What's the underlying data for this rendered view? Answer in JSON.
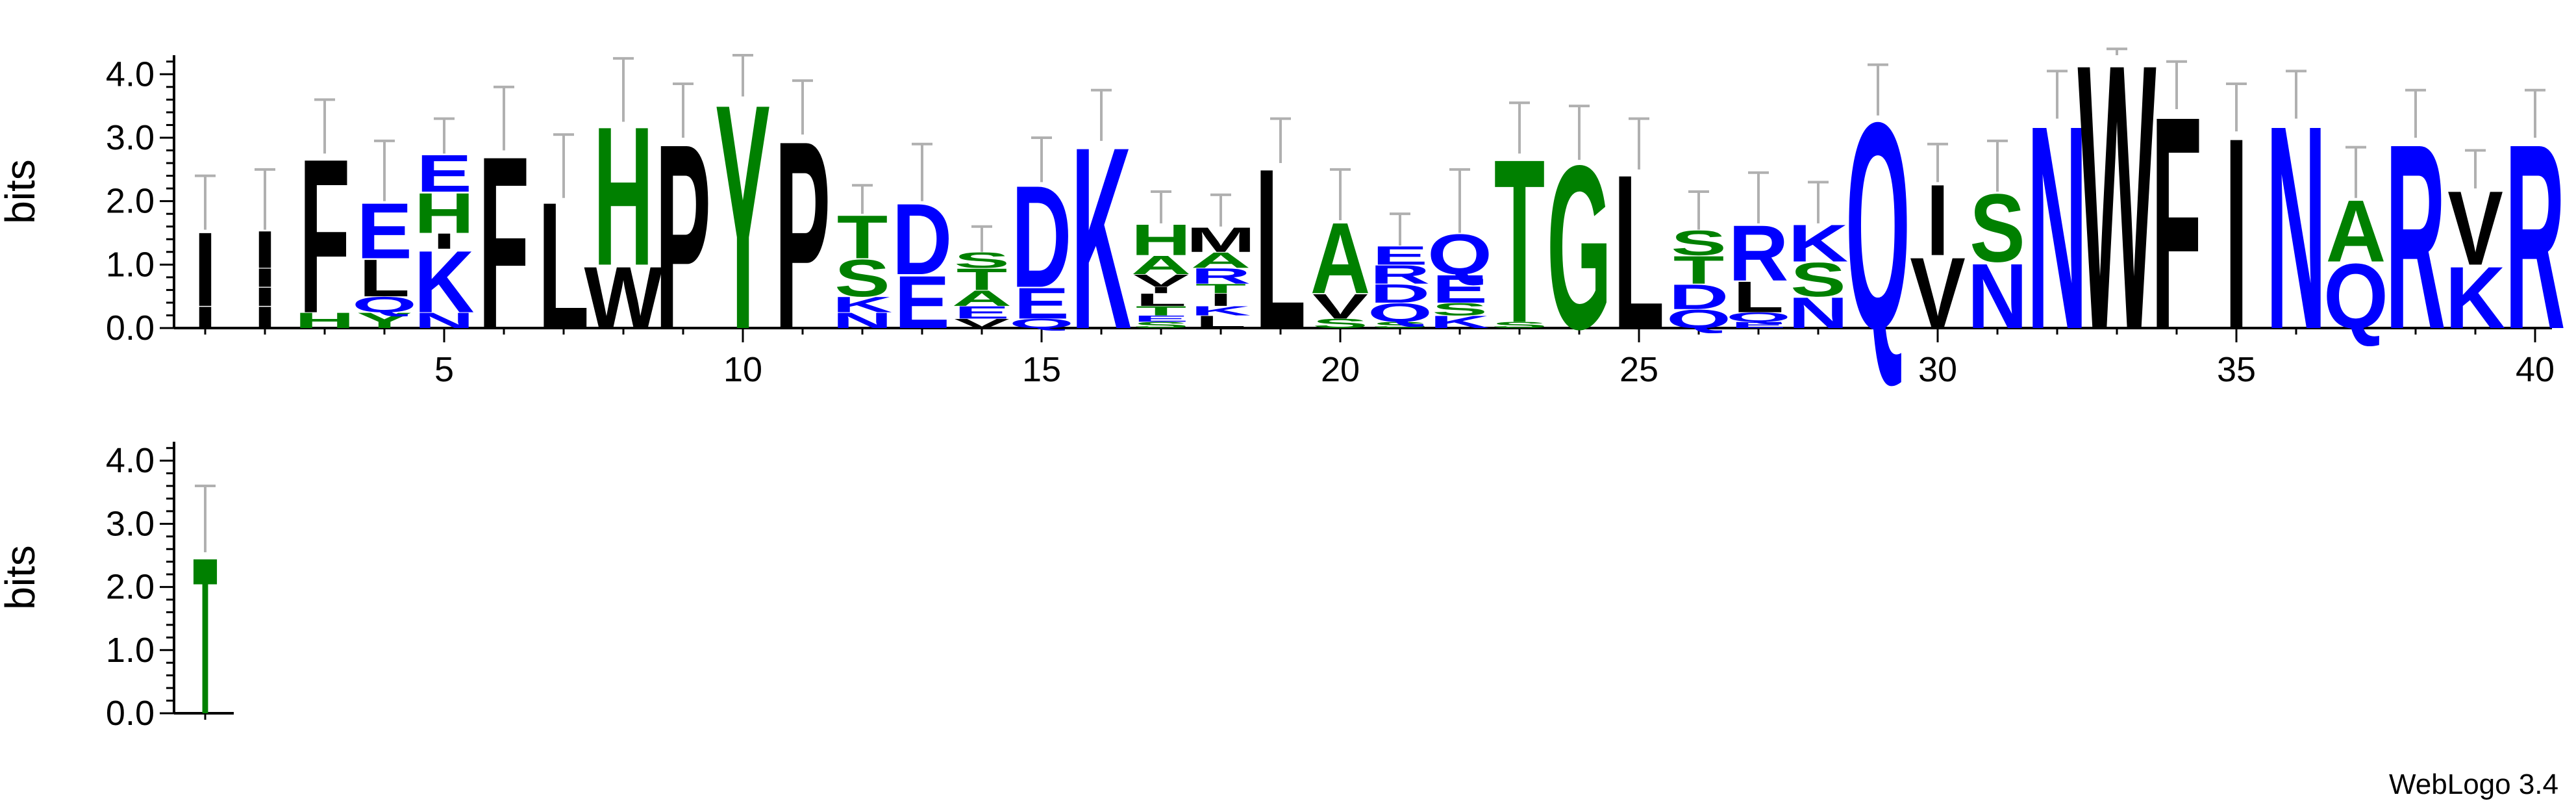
{
  "colors": {
    "hydrophobic": "#000000",
    "polar": "#008000",
    "charged": "#0000ff",
    "errorbar": "#b0b0b0"
  },
  "labels": {
    "ylabel": "bits",
    "credit": "WebLogo 3.4"
  },
  "chart_data": [
    {
      "type": "sequence-logo",
      "ylabel": "bits",
      "ylim": [
        0,
        4.3
      ],
      "y_ticks": [
        "0.0",
        "1.0",
        "2.0",
        "3.0",
        "4.0"
      ],
      "x_tick_labels": [
        "5",
        "10",
        "15",
        "20",
        "25",
        "30",
        "35",
        "40"
      ],
      "positions": [
        {
          "pos": 1,
          "stack": [
            {
              "aa": "I",
              "bits": 0.35
            },
            {
              "aa": "I",
              "bits": 1.2
            }
          ],
          "err": 2.4
        },
        {
          "pos": 2,
          "stack": [
            {
              "aa": "I",
              "bits": 0.35
            },
            {
              "aa": "I",
              "bits": 0.3
            },
            {
              "aa": "I",
              "bits": 0.3
            },
            {
              "aa": "I",
              "bits": 0.6
            }
          ],
          "err": 2.5
        },
        {
          "pos": 3,
          "stack": [
            {
              "aa": "H",
              "bits": 0.25
            },
            {
              "aa": "F",
              "bits": 2.5
            }
          ],
          "err": 3.6
        },
        {
          "pos": 4,
          "stack": [
            {
              "aa": "Y",
              "bits": 0.25
            },
            {
              "aa": "Q",
              "bits": 0.25
            },
            {
              "aa": "L",
              "bits": 0.6
            },
            {
              "aa": "E",
              "bits": 0.9
            }
          ],
          "err": 2.95
        },
        {
          "pos": 5,
          "stack": [
            {
              "aa": "N",
              "bits": 0.25
            },
            {
              "aa": "K",
              "bits": 1.0
            },
            {
              "aa": "I",
              "bits": 0.25
            },
            {
              "aa": "H",
              "bits": 0.65
            },
            {
              "aa": "E",
              "bits": 0.6
            }
          ],
          "err": 3.3
        },
        {
          "pos": 6,
          "stack": [
            {
              "aa": "F",
              "bits": 2.8
            }
          ],
          "err": 3.8
        },
        {
          "pos": 7,
          "stack": [
            {
              "aa": "L",
              "bits": 2.05
            }
          ],
          "err": 3.05
        },
        {
          "pos": 8,
          "stack": [
            {
              "aa": "W",
              "bits": 1.0
            },
            {
              "aa": "H",
              "bits": 2.25
            }
          ],
          "err": 4.25
        },
        {
          "pos": 9,
          "stack": [
            {
              "aa": "P",
              "bits": 3.0
            }
          ],
          "err": 3.85
        },
        {
          "pos": 10,
          "stack": [
            {
              "aa": "Y",
              "bits": 3.65
            }
          ],
          "err": 4.3
        },
        {
          "pos": 11,
          "stack": [
            {
              "aa": "P",
              "bits": 3.05
            }
          ],
          "err": 3.9
        },
        {
          "pos": 12,
          "stack": [
            {
              "aa": "N",
              "bits": 0.25
            },
            {
              "aa": "K",
              "bits": 0.25
            },
            {
              "aa": "S",
              "bits": 0.6
            },
            {
              "aa": "T",
              "bits": 0.7
            }
          ],
          "err": 2.25
        },
        {
          "pos": 13,
          "stack": [
            {
              "aa": "E",
              "bits": 0.85
            },
            {
              "aa": "D",
              "bits": 1.15
            }
          ],
          "err": 2.9
        },
        {
          "pos": 14,
          "stack": [
            {
              "aa": "V",
              "bits": 0.15
            },
            {
              "aa": "E",
              "bits": 0.2
            },
            {
              "aa": "A",
              "bits": 0.25
            },
            {
              "aa": "T",
              "bits": 0.35
            },
            {
              "aa": "S",
              "bits": 0.25
            }
          ],
          "err": 1.6
        },
        {
          "pos": 15,
          "stack": [
            {
              "aa": "Q",
              "bits": 0.15
            },
            {
              "aa": "E",
              "bits": 0.5
            },
            {
              "aa": "D",
              "bits": 1.65
            }
          ],
          "err": 3.0
        },
        {
          "pos": 16,
          "stack": [
            {
              "aa": "K",
              "bits": 2.95
            }
          ],
          "err": 3.75
        },
        {
          "pos": 17,
          "stack": [
            {
              "aa": "S",
              "bits": 0.1
            },
            {
              "aa": "E",
              "bits": 0.1
            },
            {
              "aa": "T",
              "bits": 0.15
            },
            {
              "aa": "L",
              "bits": 0.2
            },
            {
              "aa": "I",
              "bits": 0.1
            },
            {
              "aa": "V",
              "bits": 0.2
            },
            {
              "aa": "A",
              "bits": 0.3
            },
            {
              "aa": "H",
              "bits": 0.5
            }
          ],
          "err": 2.15
        },
        {
          "pos": 18,
          "stack": [
            {
              "aa": "L",
              "bits": 0.2
            },
            {
              "aa": "K",
              "bits": 0.15
            },
            {
              "aa": "I",
              "bits": 0.2
            },
            {
              "aa": "T",
              "bits": 0.15
            },
            {
              "aa": "R",
              "bits": 0.25
            },
            {
              "aa": "A",
              "bits": 0.25
            },
            {
              "aa": "M",
              "bits": 0.4
            }
          ],
          "err": 2.1
        },
        {
          "pos": 19,
          "stack": [
            {
              "aa": "L",
              "bits": 2.6
            }
          ],
          "err": 3.3
        },
        {
          "pos": 20,
          "stack": [
            {
              "aa": "S",
              "bits": 0.15
            },
            {
              "aa": "V",
              "bits": 0.4
            },
            {
              "aa": "A",
              "bits": 1.15
            }
          ],
          "err": 2.5
        },
        {
          "pos": 21,
          "stack": [
            {
              "aa": "S",
              "bits": 0.1
            },
            {
              "aa": "Q",
              "bits": 0.3
            },
            {
              "aa": "D",
              "bits": 0.3
            },
            {
              "aa": "R",
              "bits": 0.3
            },
            {
              "aa": "E",
              "bits": 0.3
            }
          ],
          "err": 1.8
        },
        {
          "pos": 22,
          "stack": [
            {
              "aa": "K",
              "bits": 0.2
            },
            {
              "aa": "S",
              "bits": 0.2
            },
            {
              "aa": "E",
              "bits": 0.45
            },
            {
              "aa": "Q",
              "bits": 0.65
            }
          ],
          "err": 2.5
        },
        {
          "pos": 23,
          "stack": [
            {
              "aa": "S",
              "bits": 0.1
            },
            {
              "aa": "T",
              "bits": 2.65
            }
          ],
          "err": 3.55
        },
        {
          "pos": 24,
          "stack": [
            {
              "aa": "G",
              "bits": 2.65
            }
          ],
          "err": 3.5
        },
        {
          "pos": 25,
          "stack": [
            {
              "aa": "L",
              "bits": 2.5
            }
          ],
          "err": 3.3
        },
        {
          "pos": 26,
          "stack": [
            {
              "aa": "Q",
              "bits": 0.3
            },
            {
              "aa": "D",
              "bits": 0.4
            },
            {
              "aa": "T",
              "bits": 0.45
            },
            {
              "aa": "S",
              "bits": 0.4
            }
          ],
          "err": 2.15
        },
        {
          "pos": 27,
          "stack": [
            {
              "aa": "E",
              "bits": 0.1
            },
            {
              "aa": "Q",
              "bits": 0.15
            },
            {
              "aa": "L",
              "bits": 0.5
            },
            {
              "aa": "R",
              "bits": 0.9
            }
          ],
          "err": 2.45
        },
        {
          "pos": 28,
          "stack": [
            {
              "aa": "N",
              "bits": 0.5
            },
            {
              "aa": "S",
              "bits": 0.55
            },
            {
              "aa": "K",
              "bits": 0.6
            }
          ],
          "err": 2.3
        },
        {
          "pos": 29,
          "stack": [
            {
              "aa": "Q",
              "bits": 3.35
            }
          ],
          "err": 4.15
        },
        {
          "pos": 30,
          "stack": [
            {
              "aa": "V",
              "bits": 1.15
            },
            {
              "aa": "I",
              "bits": 1.15
            }
          ],
          "err": 2.9
        },
        {
          "pos": 31,
          "stack": [
            {
              "aa": "N",
              "bits": 1.05
            },
            {
              "aa": "S",
              "bits": 1.1
            }
          ],
          "err": 2.95
        },
        {
          "pos": 32,
          "stack": [
            {
              "aa": "N",
              "bits": 3.3
            }
          ],
          "err": 4.05
        },
        {
          "pos": 33,
          "stack": [
            {
              "aa": "W",
              "bits": 4.3
            }
          ],
          "err": 4.4
        },
        {
          "pos": 34,
          "stack": [
            {
              "aa": "F",
              "bits": 3.45
            }
          ],
          "err": 4.2
        },
        {
          "pos": 35,
          "stack": [
            {
              "aa": "I",
              "bits": 3.1
            }
          ],
          "err": 3.85
        },
        {
          "pos": 36,
          "stack": [
            {
              "aa": "N",
              "bits": 3.3
            }
          ],
          "err": 4.05
        },
        {
          "pos": 37,
          "stack": [
            {
              "aa": "Q",
              "bits": 1.05
            },
            {
              "aa": "A",
              "bits": 1.0
            }
          ],
          "err": 2.85
        },
        {
          "pos": 38,
          "stack": [
            {
              "aa": "R",
              "bits": 3.0
            }
          ],
          "err": 3.75
        },
        {
          "pos": 39,
          "stack": [
            {
              "aa": "K",
              "bits": 1.0
            },
            {
              "aa": "V",
              "bits": 1.2
            }
          ],
          "err": 2.8
        },
        {
          "pos": 40,
          "stack": [
            {
              "aa": "R",
              "bits": 3.0
            }
          ],
          "err": 3.75
        }
      ]
    },
    {
      "type": "sequence-logo",
      "ylabel": "bits",
      "ylim": [
        0,
        4.3
      ],
      "y_ticks": [
        "0.0",
        "1.0",
        "2.0",
        "3.0",
        "4.0"
      ],
      "x_tick_labels": [],
      "positions": [
        {
          "pos": 1,
          "stack": [
            {
              "aa": "T",
              "bits": 2.55
            }
          ],
          "err": 3.6
        }
      ]
    }
  ]
}
